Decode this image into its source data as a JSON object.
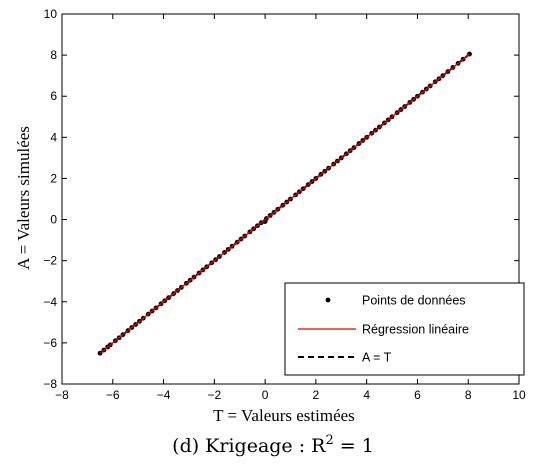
{
  "chart_data": {
    "type": "scatter",
    "xlabel": "T = Valeurs estimées",
    "ylabel": "A = Valeurs simulées",
    "xlim": [
      -8,
      10
    ],
    "ylim": [
      -8,
      10
    ],
    "xticks": [
      "−8",
      "−6",
      "−4",
      "−2",
      "0",
      "2",
      "4",
      "6",
      "8",
      "10"
    ],
    "yticks": [
      "−8",
      "−6",
      "−4",
      "−2",
      "0",
      "2",
      "4",
      "6",
      "8",
      "10"
    ],
    "grid": false,
    "legend_position": "bottom-right",
    "series": [
      {
        "name": "Points de données",
        "kind": "points",
        "color": "#000000",
        "x": [
          -6.5,
          -6.35,
          -6.2,
          -6.1,
          -5.9,
          -5.75,
          -5.6,
          -5.4,
          -5.25,
          -5.1,
          -4.95,
          -4.8,
          -4.6,
          -4.45,
          -4.3,
          -4.1,
          -3.95,
          -3.8,
          -3.6,
          -3.45,
          -3.3,
          -3.1,
          -2.95,
          -2.8,
          -2.6,
          -2.45,
          -2.3,
          -2.1,
          -1.95,
          -1.8,
          -1.6,
          -1.45,
          -1.3,
          -1.1,
          -0.95,
          -0.8,
          -0.6,
          -0.45,
          -0.3,
          -0.15,
          0.0,
          0.05,
          0.2,
          0.35,
          0.5,
          0.7,
          0.85,
          1.0,
          1.2,
          1.35,
          1.5,
          1.7,
          1.85,
          2.0,
          2.2,
          2.35,
          2.5,
          2.7,
          2.85,
          3.0,
          3.2,
          3.35,
          3.5,
          3.7,
          3.85,
          4.0,
          4.2,
          4.35,
          4.5,
          4.7,
          4.85,
          5.0,
          5.2,
          5.35,
          5.5,
          5.7,
          5.85,
          6.0,
          6.2,
          6.35,
          6.5,
          6.7,
          6.85,
          7.0,
          7.2,
          7.4,
          7.6,
          7.8,
          8.05
        ],
        "y": [
          -6.5,
          -6.35,
          -6.2,
          -6.1,
          -5.9,
          -5.75,
          -5.6,
          -5.4,
          -5.25,
          -5.1,
          -4.95,
          -4.8,
          -4.6,
          -4.45,
          -4.3,
          -4.1,
          -3.95,
          -3.8,
          -3.6,
          -3.45,
          -3.3,
          -3.1,
          -2.95,
          -2.8,
          -2.6,
          -2.45,
          -2.3,
          -2.1,
          -1.95,
          -1.8,
          -1.6,
          -1.45,
          -1.3,
          -1.1,
          -0.95,
          -0.8,
          -0.6,
          -0.45,
          -0.3,
          -0.15,
          -0.1,
          0.05,
          0.2,
          0.35,
          0.5,
          0.7,
          0.85,
          1.0,
          1.2,
          1.35,
          1.5,
          1.7,
          1.85,
          2.0,
          2.2,
          2.35,
          2.5,
          2.7,
          2.85,
          3.0,
          3.2,
          3.35,
          3.5,
          3.7,
          3.85,
          4.0,
          4.2,
          4.35,
          4.5,
          4.7,
          4.85,
          5.0,
          5.2,
          5.35,
          5.5,
          5.7,
          5.85,
          6.0,
          6.2,
          6.35,
          6.5,
          6.7,
          6.85,
          7.0,
          7.2,
          7.4,
          7.6,
          7.8,
          8.05
        ]
      },
      {
        "name": "Régression linéaire",
        "kind": "line",
        "color": "#e00000",
        "x": [
          -6.5,
          8.05
        ],
        "y": [
          -6.5,
          8.05
        ]
      },
      {
        "name": "A = T",
        "kind": "dashed-line",
        "color": "#000000",
        "x": [
          -6.5,
          8.05
        ],
        "y": [
          -6.5,
          8.05
        ]
      }
    ]
  },
  "caption": {
    "prefix": "(d) Krigeage : R",
    "superscript": "2",
    "suffix": " = 1"
  }
}
